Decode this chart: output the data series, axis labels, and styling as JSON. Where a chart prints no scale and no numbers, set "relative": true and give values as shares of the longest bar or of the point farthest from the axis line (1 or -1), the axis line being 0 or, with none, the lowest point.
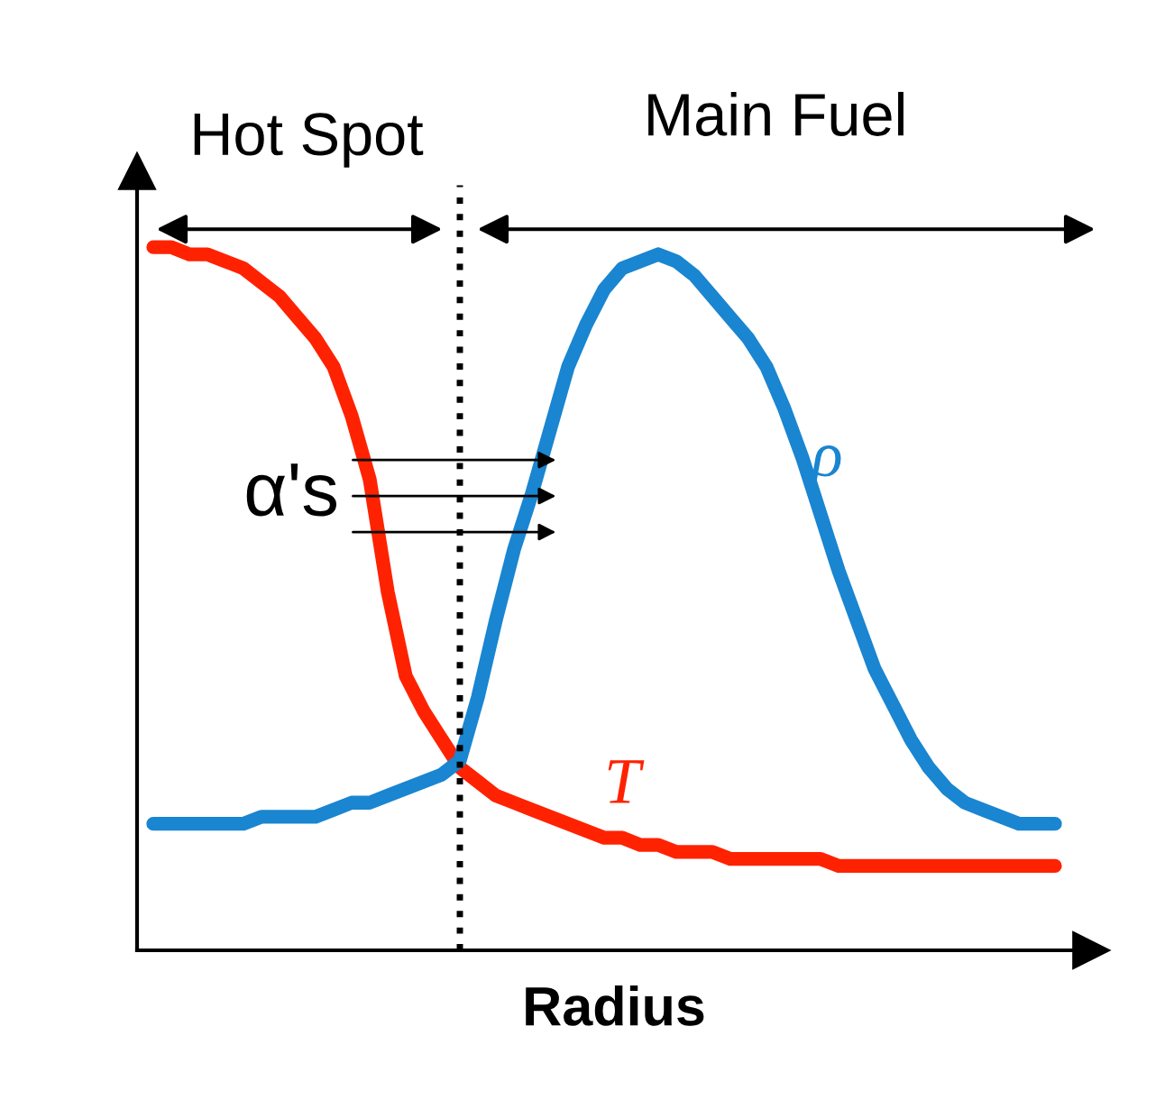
{
  "chart_data": {
    "type": "line",
    "relative": true,
    "xlabel": "Radius",
    "marker": "none",
    "line_style": "solid",
    "categories": [
      null,
      null,
      null,
      null,
      null,
      null,
      null,
      null,
      null,
      null,
      null,
      null,
      null,
      null,
      null,
      null,
      null,
      null,
      null,
      null,
      null,
      null,
      null,
      null,
      null,
      null,
      null,
      null,
      null,
      null,
      null,
      null,
      null,
      null,
      null,
      null,
      null,
      null,
      null,
      null,
      null,
      null,
      null,
      null,
      null,
      null,
      null,
      null,
      null,
      null,
      null
    ],
    "series": [
      {
        "name": "T",
        "color": "#ff2200",
        "values": [
          1.0,
          1.0,
          0.99,
          0.99,
          0.98,
          0.97,
          0.95,
          0.93,
          0.9,
          0.87,
          0.83,
          0.76,
          0.67,
          0.51,
          0.39,
          0.34,
          0.3,
          0.26,
          0.24,
          0.22,
          0.21,
          0.2,
          0.19,
          0.18,
          0.17,
          0.16,
          0.16,
          0.15,
          0.15,
          0.14,
          0.14,
          0.14,
          0.13,
          0.13,
          0.13,
          0.13,
          0.13,
          0.13,
          0.12,
          0.12,
          0.12,
          0.12,
          0.12,
          0.12,
          0.12,
          0.12,
          0.12,
          0.12,
          0.12,
          0.12,
          0.12
        ]
      },
      {
        "name": "ρ",
        "color": "#1a85d0",
        "values": [
          0.18,
          0.18,
          0.18,
          0.18,
          0.18,
          0.18,
          0.19,
          0.19,
          0.19,
          0.19,
          0.2,
          0.21,
          0.21,
          0.22,
          0.23,
          0.24,
          0.25,
          0.27,
          0.36,
          0.47,
          0.57,
          0.65,
          0.74,
          0.83,
          0.89,
          0.94,
          0.97,
          0.98,
          0.99,
          0.98,
          0.96,
          0.93,
          0.9,
          0.87,
          0.83,
          0.77,
          0.7,
          0.62,
          0.54,
          0.47,
          0.4,
          0.35,
          0.3,
          0.26,
          0.23,
          0.21,
          0.2,
          0.19,
          0.18,
          0.18,
          0.18
        ]
      }
    ],
    "annotations": [
      "Hot Spot",
      "Main Fuel",
      "α's"
    ]
  }
}
